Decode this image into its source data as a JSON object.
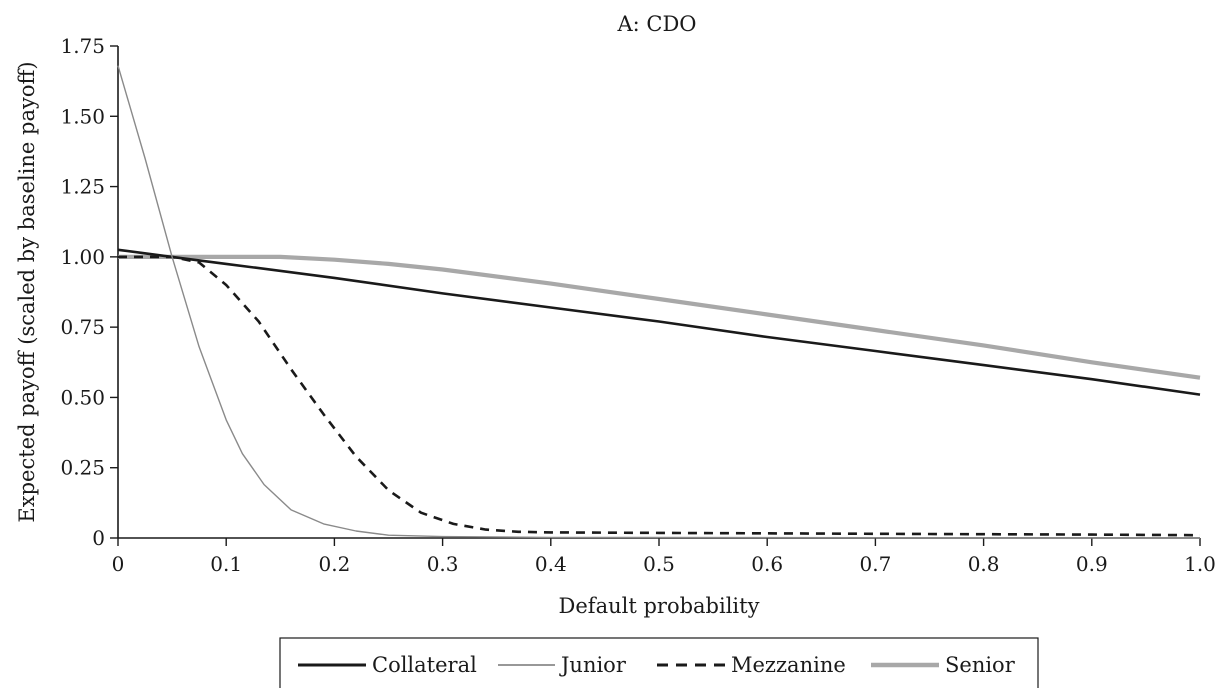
{
  "chart_data": {
    "type": "line",
    "title": "A: CDO",
    "xlabel": "Default probability",
    "ylabel": "Expected payoff (scaled by baseline payoff)",
    "xlim": [
      0,
      1.0
    ],
    "ylim": [
      0,
      1.75
    ],
    "xticks": [
      "0",
      "0.1",
      "0.2",
      "0.3",
      "0.4",
      "0.5",
      "0.6",
      "0.7",
      "0.8",
      "0.9",
      "1.0"
    ],
    "yticks": [
      "0",
      "0.25",
      "0.50",
      "0.75",
      "1.00",
      "1.25",
      "1.50",
      "1.75"
    ],
    "grid": false,
    "legend_position": "bottom",
    "series": [
      {
        "name": "Collateral",
        "color": "#1a1a1a",
        "style": "solid-thick",
        "x": [
          0,
          0.05,
          0.1,
          0.2,
          0.3,
          0.4,
          0.5,
          0.6,
          0.7,
          0.8,
          0.9,
          1.0
        ],
        "y": [
          1.025,
          1.0,
          0.975,
          0.925,
          0.87,
          0.82,
          0.77,
          0.715,
          0.665,
          0.615,
          0.565,
          0.51
        ]
      },
      {
        "name": "Junior",
        "color": "#8a8a8a",
        "style": "solid-thin",
        "x": [
          0,
          0.025,
          0.05,
          0.075,
          0.1,
          0.115,
          0.135,
          0.16,
          0.19,
          0.22,
          0.25,
          0.3,
          0.4,
          1.0
        ],
        "y": [
          1.68,
          1.35,
          1.0,
          0.68,
          0.42,
          0.3,
          0.19,
          0.1,
          0.05,
          0.025,
          0.01,
          0.005,
          0.002,
          0.0
        ]
      },
      {
        "name": "Mezzanine",
        "color": "#1a1a1a",
        "style": "dashed",
        "x": [
          0,
          0.05,
          0.075,
          0.1,
          0.13,
          0.16,
          0.19,
          0.22,
          0.25,
          0.28,
          0.31,
          0.34,
          0.37,
          0.4,
          0.5,
          0.7,
          0.9,
          1.0
        ],
        "y": [
          1.0,
          1.0,
          0.98,
          0.9,
          0.77,
          0.6,
          0.44,
          0.29,
          0.17,
          0.09,
          0.05,
          0.03,
          0.022,
          0.02,
          0.018,
          0.015,
          0.012,
          0.01
        ]
      },
      {
        "name": "Senior",
        "color": "#a8a8a8",
        "style": "solid-thickest",
        "x": [
          0,
          0.05,
          0.1,
          0.15,
          0.2,
          0.25,
          0.3,
          0.4,
          0.5,
          0.6,
          0.7,
          0.8,
          0.9,
          1.0
        ],
        "y": [
          1.0,
          1.0,
          1.0,
          1.0,
          0.99,
          0.975,
          0.955,
          0.905,
          0.85,
          0.795,
          0.74,
          0.685,
          0.625,
          0.57
        ]
      }
    ]
  }
}
